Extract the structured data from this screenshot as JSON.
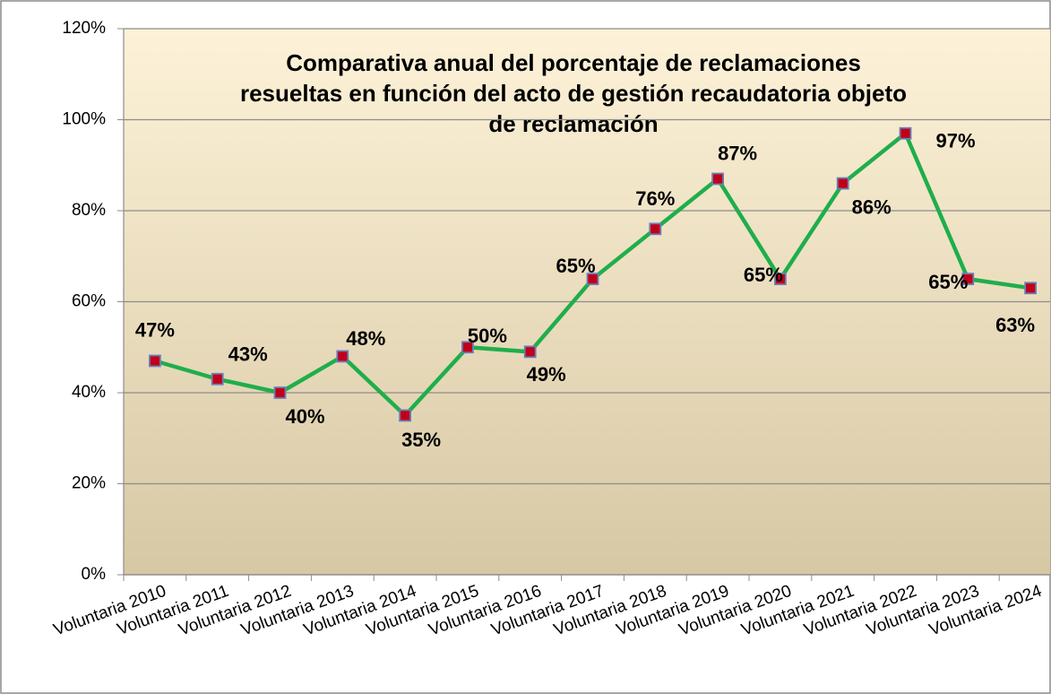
{
  "chart_data": {
    "type": "line",
    "title": [
      "Comparativa anual del porcentaje de reclamaciones",
      "resueltas en función del acto de gestión recaudatoria objeto",
      "de reclamación"
    ],
    "categories": [
      "Voluntaria 2010",
      "Voluntaria 2011",
      "Voluntaria 2012",
      "Voluntaria 2013",
      "Voluntaria 2014",
      "Voluntaria 2015",
      "Voluntaria 2016",
      "Voluntaria 2017",
      "Voluntaria 2018",
      "Voluntaria 2019",
      "Voluntaria 2020",
      "Voluntaria 2021",
      "Voluntaria 2022",
      "Voluntaria 2023",
      "Voluntaria 2024"
    ],
    "values": [
      47,
      43,
      40,
      48,
      35,
      50,
      49,
      65,
      76,
      87,
      65,
      86,
      97,
      65,
      63
    ],
    "value_labels": [
      "47%",
      "43%",
      "40%",
      "48%",
      "35%",
      "50%",
      "49%",
      "65%",
      "76%",
      "87%",
      "65%",
      "86%",
      "97%",
      "65%",
      "63%"
    ],
    "color": "#1fae4b",
    "marker_color": "#c0001a",
    "ylim": [
      0,
      120
    ],
    "yticks": [
      {
        "value": 0,
        "label": "0%"
      },
      {
        "value": 20,
        "label": "20%"
      },
      {
        "value": 40,
        "label": "40%"
      },
      {
        "value": 60,
        "label": "60%"
      },
      {
        "value": 80,
        "label": "80%"
      },
      {
        "value": 100,
        "label": "100%"
      },
      {
        "value": 120,
        "label": "120%"
      }
    ],
    "grid": true
  }
}
